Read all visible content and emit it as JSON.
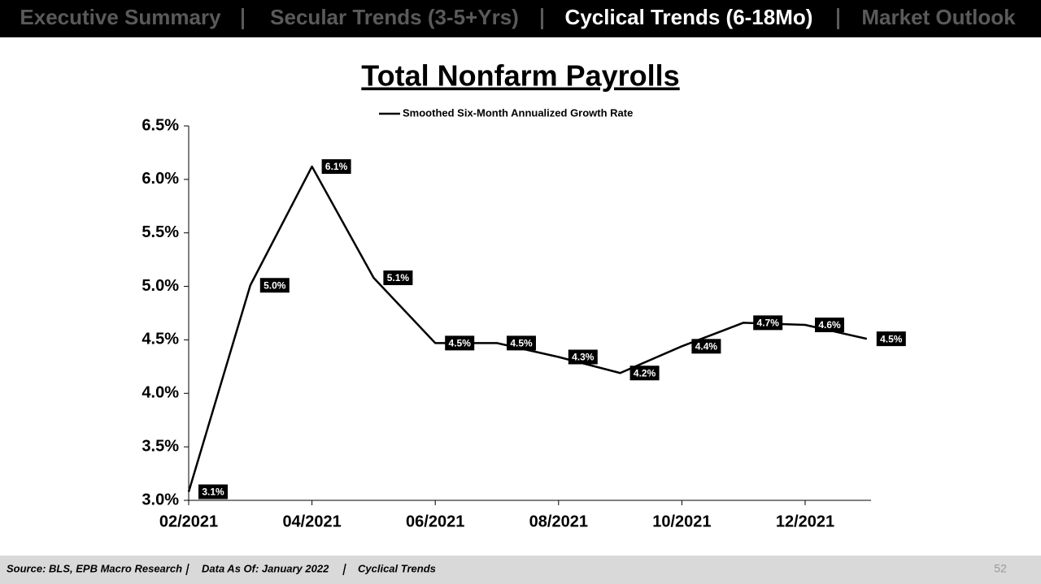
{
  "nav": {
    "tabs": [
      "Executive Summary",
      "Secular Trends (3-5+Yrs)",
      "Cyclical Trends (6-18Mo)",
      "Market Outlook"
    ],
    "active": 2
  },
  "chart_data": {
    "type": "line",
    "title": "Total Nonfarm Payrolls",
    "categories": [
      "02/2021",
      null,
      "04/2021",
      null,
      "06/2021",
      null,
      "08/2021",
      null,
      "10/2021",
      null,
      "12/2021",
      null
    ],
    "series": [
      {
        "name": "Smoothed Six-Month Annualized Growth Rate",
        "color": "#000000",
        "values": [
          3.08,
          5.01,
          6.12,
          5.08,
          4.47,
          4.47,
          4.34,
          4.19,
          4.44,
          4.66,
          4.64,
          4.51
        ],
        "value_labels": [
          "3.1%",
          "5.0%",
          "6.1%",
          "5.1%",
          "4.5%",
          "4.5%",
          "4.3%",
          "4.2%",
          "4.4%",
          "4.7%",
          "4.6%",
          "4.5%"
        ]
      }
    ],
    "ylim": [
      3.0,
      6.5
    ],
    "yticks": [
      {
        "value": 3.0,
        "label": "3.0%"
      },
      {
        "value": 3.5,
        "label": "3.5%"
      },
      {
        "value": 4.0,
        "label": "4.0%"
      },
      {
        "value": 4.5,
        "label": "4.5%"
      },
      {
        "value": 5.0,
        "label": "5.0%"
      },
      {
        "value": 5.5,
        "label": "5.5%"
      },
      {
        "value": 6.0,
        "label": "6.0%"
      },
      {
        "value": 6.5,
        "label": "6.5%"
      }
    ],
    "grid": false,
    "legend": "top"
  },
  "footer": {
    "items": [
      "Source: BLS, EPB Macro Research",
      "Data As Of: January 2022",
      "Cyclical Trends"
    ],
    "page": "52"
  }
}
